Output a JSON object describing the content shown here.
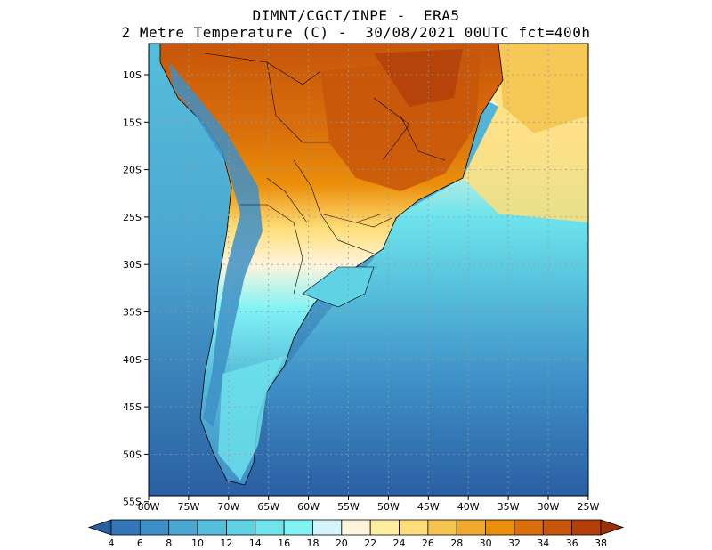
{
  "title_line1": "DIMNT/CGCT/INPE -  ERA5",
  "title_line2": "2 Metre Temperature (C) -  30/08/2021 00UTC fct=400h",
  "lat_labels": [
    "10S",
    "15S",
    "20S",
    "25S",
    "30S",
    "35S",
    "40S",
    "45S",
    "50S",
    "55S"
  ],
  "lon_labels": [
    "80W",
    "75W",
    "70W",
    "65W",
    "60W",
    "55W",
    "50W",
    "45W",
    "40W",
    "35W",
    "30W",
    "25W"
  ],
  "colorbar": {
    "labels": [
      "4",
      "6",
      "8",
      "10",
      "12",
      "14",
      "16",
      "18",
      "20",
      "22",
      "24",
      "26",
      "28",
      "30",
      "32",
      "34",
      "36",
      "38"
    ],
    "colors": [
      "#2a5fa3",
      "#3377b9",
      "#3e8fc7",
      "#4ba7d1",
      "#56bedb",
      "#5fd2e3",
      "#6ee4ec",
      "#82f3f5",
      "#d6f4fb",
      "#fff4dc",
      "#ffeea0",
      "#ffde7a",
      "#f5c550",
      "#efa92c",
      "#eb8f0a",
      "#d9700b",
      "#c8560a",
      "#b3400a",
      "#9c3008"
    ]
  },
  "colors": {
    "ocean_far": "#2a5fa3",
    "land_hot": "#c8560a",
    "border": "#000000"
  }
}
